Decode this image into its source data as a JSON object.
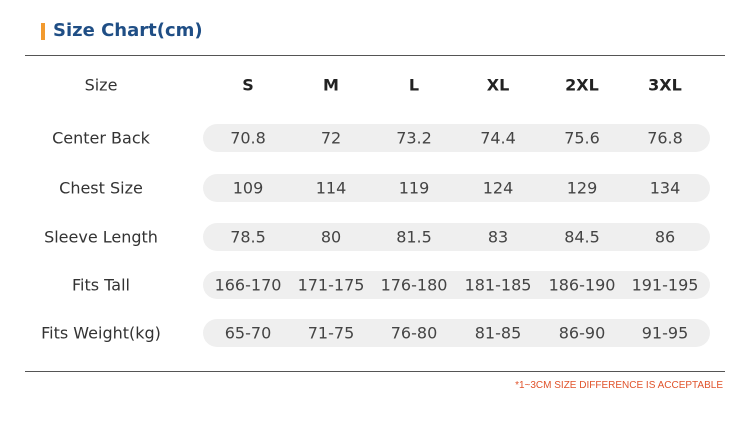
{
  "header": {
    "title": "Size Chart(cm)"
  },
  "table": {
    "columns": [
      "Size",
      "S",
      "M",
      "L",
      "XL",
      "2XL",
      "3XL"
    ],
    "rows": [
      [
        "Center Back",
        70.8,
        72,
        73.2,
        74.4,
        75.6,
        76.8
      ],
      [
        "Chest Size",
        109,
        114,
        119,
        124,
        129,
        134
      ],
      [
        "Sleeve Length",
        78.5,
        80,
        81.5,
        83,
        84.5,
        86
      ],
      [
        "Fits Tall",
        "166-170",
        "171-175",
        "176-180",
        "181-185",
        "186-190",
        "191-195"
      ],
      [
        "Fits Weight(kg)",
        "65-70",
        "71-75",
        "76-80",
        "81-85",
        "86-90",
        "91-95"
      ]
    ]
  },
  "note": "*1~3CM SIZE DIFFERENCE IS ACCEPTABLE"
}
